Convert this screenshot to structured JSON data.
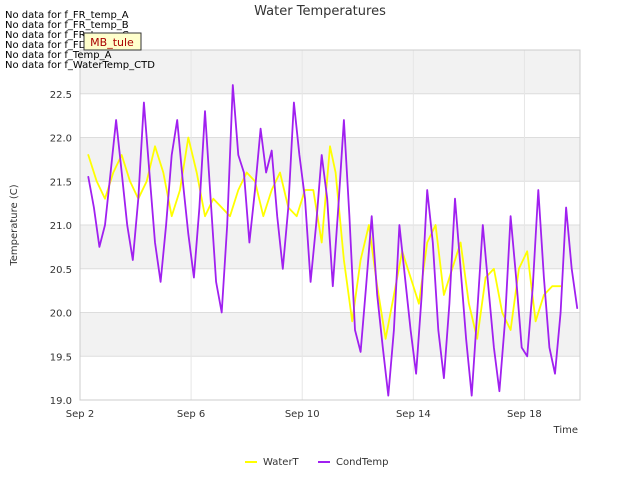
{
  "chart_data": {
    "type": "line",
    "title": "Water Temperatures",
    "xlabel": "Time",
    "ylabel": "Temperature (C)",
    "x_ticks": [
      "Sep 2",
      "Sep 6",
      "Sep 10",
      "Sep 14",
      "Sep 18"
    ],
    "x_tick_days": [
      2,
      6,
      10,
      14,
      18
    ],
    "x_range_days": [
      2,
      20.0
    ],
    "ylim": [
      19.0,
      23.0
    ],
    "y_ticks": [
      "19.0",
      "19.5",
      "20.0",
      "20.5",
      "21.0",
      "21.5",
      "22.0",
      "22.5"
    ],
    "y_tick_values": [
      19.0,
      19.5,
      20.0,
      20.5,
      21.0,
      21.5,
      22.0,
      22.5
    ],
    "grid": true,
    "banded_background": true,
    "legend_position": "bottom-center",
    "no_data_messages": [
      "No data for f_FR_temp_A",
      "No data for f_FR_temp_B",
      "No data for f_FR_temp_C",
      "No data for f_FD_Temp_1",
      "No data for f_Temp_A",
      "No data for f_WaterTemp_CTD"
    ],
    "badge_text": "MB_tule",
    "series": [
      {
        "name": "WaterT",
        "color": "#ffff00",
        "points": [
          [
            2.3,
            21.8
          ],
          [
            2.6,
            21.5
          ],
          [
            2.9,
            21.3
          ],
          [
            3.2,
            21.6
          ],
          [
            3.5,
            21.8
          ],
          [
            3.8,
            21.5
          ],
          [
            4.1,
            21.3
          ],
          [
            4.4,
            21.5
          ],
          [
            4.7,
            21.9
          ],
          [
            5.0,
            21.6
          ],
          [
            5.3,
            21.1
          ],
          [
            5.6,
            21.4
          ],
          [
            5.9,
            22.0
          ],
          [
            6.2,
            21.6
          ],
          [
            6.5,
            21.1
          ],
          [
            6.8,
            21.3
          ],
          [
            7.1,
            21.2
          ],
          [
            7.4,
            21.1
          ],
          [
            7.7,
            21.4
          ],
          [
            8.0,
            21.6
          ],
          [
            8.3,
            21.5
          ],
          [
            8.6,
            21.1
          ],
          [
            8.9,
            21.4
          ],
          [
            9.2,
            21.6
          ],
          [
            9.5,
            21.2
          ],
          [
            9.8,
            21.1
          ],
          [
            10.1,
            21.4
          ],
          [
            10.4,
            21.4
          ],
          [
            10.7,
            20.8
          ],
          [
            11.0,
            21.9
          ],
          [
            11.2,
            21.6
          ],
          [
            11.5,
            20.6
          ],
          [
            11.8,
            19.9
          ],
          [
            12.1,
            20.6
          ],
          [
            12.4,
            21.0
          ],
          [
            12.7,
            20.3
          ],
          [
            13.0,
            19.7
          ],
          [
            13.3,
            20.2
          ],
          [
            13.6,
            20.7
          ],
          [
            13.9,
            20.4
          ],
          [
            14.2,
            20.1
          ],
          [
            14.5,
            20.8
          ],
          [
            14.8,
            21.0
          ],
          [
            15.1,
            20.2
          ],
          [
            15.4,
            20.5
          ],
          [
            15.7,
            20.8
          ],
          [
            16.0,
            20.1
          ],
          [
            16.3,
            19.7
          ],
          [
            16.6,
            20.4
          ],
          [
            16.9,
            20.5
          ],
          [
            17.2,
            20.0
          ],
          [
            17.5,
            19.8
          ],
          [
            17.8,
            20.5
          ],
          [
            18.1,
            20.7
          ],
          [
            18.4,
            19.9
          ],
          [
            18.7,
            20.2
          ],
          [
            19.0,
            20.3
          ],
          [
            19.3,
            20.3
          ]
        ]
      },
      {
        "name": "CondTemp",
        "color": "#a020f0",
        "points": [
          [
            2.3,
            21.55
          ],
          [
            2.5,
            21.2
          ],
          [
            2.7,
            20.75
          ],
          [
            2.9,
            21.0
          ],
          [
            3.1,
            21.6
          ],
          [
            3.3,
            22.2
          ],
          [
            3.5,
            21.6
          ],
          [
            3.7,
            21.0
          ],
          [
            3.9,
            20.6
          ],
          [
            4.1,
            21.3
          ],
          [
            4.3,
            22.4
          ],
          [
            4.5,
            21.6
          ],
          [
            4.7,
            20.8
          ],
          [
            4.9,
            20.35
          ],
          [
            5.1,
            21.0
          ],
          [
            5.3,
            21.8
          ],
          [
            5.5,
            22.2
          ],
          [
            5.7,
            21.5
          ],
          [
            5.9,
            20.9
          ],
          [
            6.1,
            20.4
          ],
          [
            6.3,
            21.2
          ],
          [
            6.5,
            22.3
          ],
          [
            6.7,
            21.3
          ],
          [
            6.9,
            20.35
          ],
          [
            7.1,
            20.0
          ],
          [
            7.3,
            21.0
          ],
          [
            7.5,
            22.6
          ],
          [
            7.7,
            21.8
          ],
          [
            7.9,
            21.6
          ],
          [
            8.1,
            20.8
          ],
          [
            8.3,
            21.4
          ],
          [
            8.5,
            22.1
          ],
          [
            8.7,
            21.6
          ],
          [
            8.9,
            21.85
          ],
          [
            9.1,
            21.1
          ],
          [
            9.3,
            20.5
          ],
          [
            9.5,
            21.2
          ],
          [
            9.7,
            22.4
          ],
          [
            9.9,
            21.8
          ],
          [
            10.1,
            21.3
          ],
          [
            10.3,
            20.35
          ],
          [
            10.5,
            21.0
          ],
          [
            10.7,
            21.8
          ],
          [
            10.9,
            21.3
          ],
          [
            11.1,
            20.3
          ],
          [
            11.3,
            21.2
          ],
          [
            11.5,
            22.2
          ],
          [
            11.7,
            21.1
          ],
          [
            11.9,
            19.8
          ],
          [
            12.1,
            19.55
          ],
          [
            12.3,
            20.3
          ],
          [
            12.5,
            21.1
          ],
          [
            12.7,
            20.2
          ],
          [
            12.9,
            19.6
          ],
          [
            13.1,
            19.05
          ],
          [
            13.3,
            19.8
          ],
          [
            13.5,
            21.0
          ],
          [
            13.7,
            20.4
          ],
          [
            13.9,
            19.8
          ],
          [
            14.1,
            19.3
          ],
          [
            14.3,
            20.2
          ],
          [
            14.5,
            21.4
          ],
          [
            14.7,
            20.8
          ],
          [
            14.9,
            19.8
          ],
          [
            15.1,
            19.25
          ],
          [
            15.3,
            20.1
          ],
          [
            15.5,
            21.3
          ],
          [
            15.7,
            20.5
          ],
          [
            15.9,
            19.7
          ],
          [
            16.1,
            19.05
          ],
          [
            16.3,
            20.0
          ],
          [
            16.5,
            21.0
          ],
          [
            16.7,
            20.3
          ],
          [
            16.9,
            19.6
          ],
          [
            17.1,
            19.1
          ],
          [
            17.3,
            19.9
          ],
          [
            17.5,
            21.1
          ],
          [
            17.7,
            20.4
          ],
          [
            17.9,
            19.6
          ],
          [
            18.1,
            19.5
          ],
          [
            18.3,
            20.3
          ],
          [
            18.5,
            21.4
          ],
          [
            18.7,
            20.4
          ],
          [
            18.9,
            19.6
          ],
          [
            19.1,
            19.3
          ],
          [
            19.3,
            20.0
          ],
          [
            19.5,
            21.2
          ],
          [
            19.7,
            20.5
          ],
          [
            19.9,
            20.05
          ]
        ]
      }
    ]
  }
}
